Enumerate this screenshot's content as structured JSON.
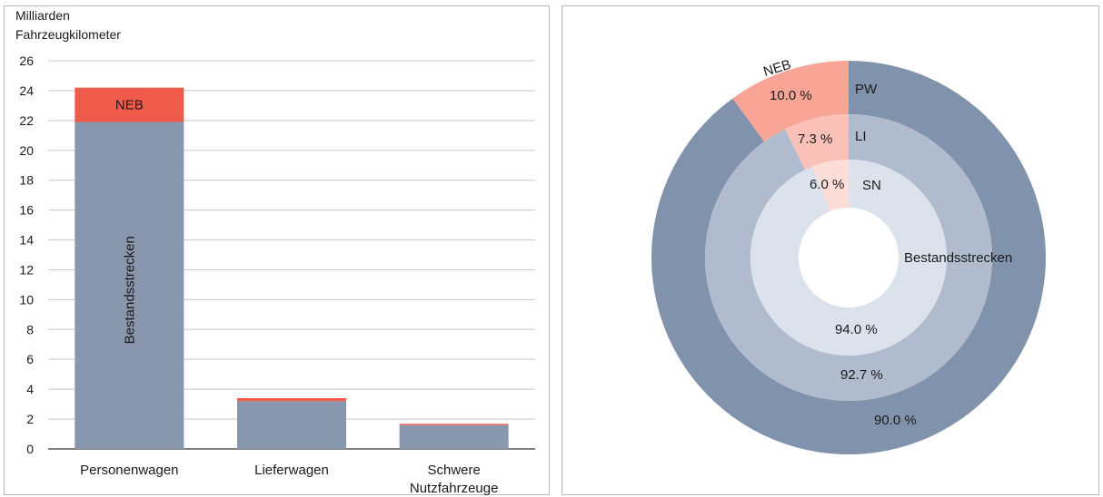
{
  "chart_data": [
    {
      "type": "bar",
      "stacked": true,
      "ylabel_lines": [
        "Milliarden",
        "Fahrzeugkilometer"
      ],
      "ylim": [
        0,
        26
      ],
      "yticks": [
        0,
        2,
        4,
        6,
        8,
        10,
        12,
        14,
        16,
        18,
        20,
        22,
        24,
        26
      ],
      "grid": true,
      "categories": [
        "Personenwagen",
        "Lieferwagen",
        "Schwere Nutzfahrzeuge"
      ],
      "category_label_lines": [
        [
          "Personenwagen"
        ],
        [
          "Lieferwagen"
        ],
        [
          "Schwere",
          "Nutzfahrzeuge"
        ]
      ],
      "series": [
        {
          "name": "Bestandsstrecken",
          "color": "#8896ae",
          "values": [
            21.9,
            3.2,
            1.6
          ]
        },
        {
          "name": "NEB",
          "color": "#f05a4a",
          "values": [
            2.3,
            0.2,
            0.08
          ]
        }
      ]
    },
    {
      "type": "pie",
      "style": "nested-donut",
      "rings": [
        {
          "label": "PW",
          "color_main": "#8192ac",
          "color_neb": "#f8a598",
          "values": [
            90.0,
            10.0
          ],
          "labels": [
            "90.0 %",
            "10.0 %"
          ]
        },
        {
          "label": "LI",
          "color_main": "#b0bccd",
          "color_neb": "#fac1b8",
          "values": [
            92.7,
            7.3
          ],
          "labels": [
            "92.7 %",
            "7.3 %"
          ]
        },
        {
          "label": "SN",
          "color_main": "#dbe2eb",
          "color_neb": "#fcddd8",
          "values": [
            94.0,
            6.0
          ],
          "labels": [
            "94.0 %",
            "6.0 %"
          ]
        }
      ],
      "slice_names": [
        "Bestandsstrecken",
        "NEB"
      ]
    }
  ]
}
